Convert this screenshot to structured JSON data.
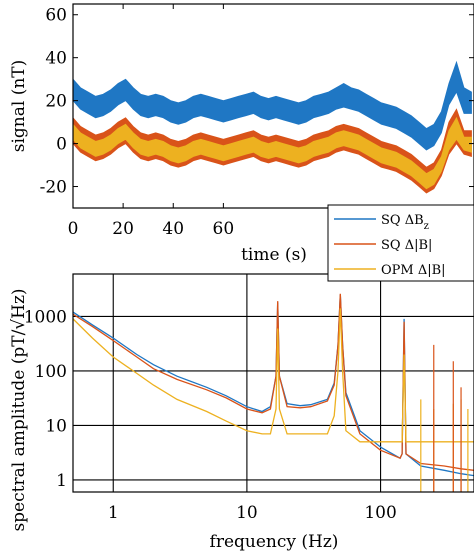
{
  "colors": {
    "sq_dbz": "#1f77c4",
    "sq_db": "#d95319",
    "opm_db": "#edb120"
  },
  "chart_data": [
    {
      "type": "area",
      "xlabel": "time (s)",
      "ylabel": "signal (nT)",
      "xlim": [
        0,
        160
      ],
      "ylim": [
        -30,
        65
      ],
      "xticks": [
        0,
        20,
        40,
        60
      ],
      "xtick_labels": [
        "0",
        "20",
        "40",
        "60"
      ],
      "yticks": [
        -20,
        0,
        20,
        40,
        60
      ],
      "ytick_labels": [
        "-20",
        "0",
        "20",
        "40",
        "60"
      ],
      "grid": false,
      "series": [
        {
          "name": "SQ ΔBz",
          "color": "sq_dbz",
          "x": [
            0,
            3,
            6,
            9,
            12,
            15,
            18,
            21,
            24,
            27,
            30,
            33,
            36,
            39,
            42,
            45,
            48,
            51,
            54,
            57,
            60,
            63,
            66,
            69,
            72,
            75,
            78,
            81,
            84,
            87,
            90,
            93,
            96,
            99,
            102,
            105,
            108,
            111,
            114,
            117,
            120,
            123,
            126,
            129,
            132,
            135,
            138,
            141,
            144,
            147,
            150,
            153,
            156,
            159
          ],
          "low": [
            20,
            16,
            14,
            12,
            13,
            15,
            18,
            20,
            16,
            13,
            12,
            13,
            12,
            10,
            9,
            10,
            12,
            13,
            12,
            11,
            10,
            11,
            12,
            13,
            14,
            12,
            11,
            12,
            11,
            10,
            9,
            10,
            12,
            13,
            14,
            16,
            17,
            16,
            15,
            13,
            11,
            9,
            8,
            7,
            5,
            3,
            0,
            -3,
            -1,
            5,
            18,
            24,
            14,
            14
          ],
          "high": [
            30,
            26,
            24,
            22,
            23,
            25,
            28,
            30,
            26,
            23,
            22,
            23,
            22,
            20,
            19,
            20,
            22,
            23,
            22,
            21,
            20,
            21,
            22,
            23,
            24,
            22,
            21,
            22,
            21,
            20,
            19,
            20,
            22,
            23,
            24,
            26,
            28,
            26,
            25,
            23,
            21,
            19,
            18,
            17,
            15,
            13,
            10,
            7,
            9,
            15,
            28,
            38,
            26,
            24
          ]
        },
        {
          "name": "SQ Δ|B|",
          "color": "sq_db",
          "x": [
            0,
            3,
            6,
            9,
            12,
            15,
            18,
            21,
            24,
            27,
            30,
            33,
            36,
            39,
            42,
            45,
            48,
            51,
            54,
            57,
            60,
            63,
            66,
            69,
            72,
            75,
            78,
            81,
            84,
            87,
            90,
            93,
            96,
            99,
            102,
            105,
            108,
            111,
            114,
            117,
            120,
            123,
            126,
            129,
            132,
            135,
            138,
            141,
            144,
            147,
            150,
            153,
            156,
            159
          ],
          "low": [
            0,
            -4,
            -6,
            -8,
            -7,
            -5,
            -2,
            0,
            -4,
            -7,
            -8,
            -7,
            -8,
            -10,
            -11,
            -10,
            -8,
            -7,
            -8,
            -9,
            -10,
            -9,
            -8,
            -7,
            -6,
            -8,
            -9,
            -8,
            -9,
            -10,
            -11,
            -10,
            -8,
            -7,
            -6,
            -4,
            -3,
            -4,
            -5,
            -7,
            -9,
            -11,
            -12,
            -13,
            -15,
            -17,
            -20,
            -23,
            -21,
            -15,
            -5,
            0,
            -5,
            -6
          ],
          "high": [
            12,
            8,
            6,
            4,
            5,
            7,
            10,
            12,
            8,
            5,
            4,
            5,
            4,
            2,
            1,
            2,
            4,
            5,
            4,
            3,
            2,
            3,
            4,
            5,
            6,
            4,
            3,
            4,
            3,
            2,
            1,
            2,
            4,
            5,
            6,
            8,
            9,
            8,
            7,
            5,
            3,
            1,
            0,
            -1,
            -3,
            -5,
            -8,
            -11,
            -9,
            -3,
            10,
            16,
            6,
            6
          ]
        },
        {
          "name": "OPM Δ|B|",
          "color": "opm_db",
          "x": [
            0,
            3,
            6,
            9,
            12,
            15,
            18,
            21,
            24,
            27,
            30,
            33,
            36,
            39,
            42,
            45,
            48,
            51,
            54,
            57,
            60,
            63,
            66,
            69,
            72,
            75,
            78,
            81,
            84,
            87,
            90,
            93,
            96,
            99,
            102,
            105,
            108,
            111,
            114,
            117,
            120,
            123,
            126,
            129,
            132,
            135,
            138,
            141,
            144,
            147,
            150,
            153,
            156,
            159
          ],
          "low": [
            2,
            -2,
            -4,
            -6,
            -5,
            -3,
            0,
            2,
            -2,
            -5,
            -6,
            -5,
            -6,
            -8,
            -9,
            -8,
            -6,
            -5,
            -6,
            -7,
            -8,
            -7,
            -6,
            -5,
            -4,
            -6,
            -7,
            -6,
            -7,
            -8,
            -9,
            -8,
            -6,
            -5,
            -4,
            -2,
            -1,
            -2,
            -3,
            -5,
            -7,
            -9,
            -10,
            -11,
            -13,
            -15,
            -18,
            -21,
            -19,
            -13,
            -3,
            2,
            -3,
            -4
          ],
          "high": [
            9,
            5,
            3,
            1,
            2,
            4,
            7,
            9,
            5,
            2,
            1,
            2,
            1,
            -1,
            -2,
            -1,
            1,
            2,
            1,
            0,
            -1,
            0,
            1,
            2,
            3,
            1,
            0,
            1,
            0,
            -1,
            -2,
            -1,
            1,
            2,
            3,
            5,
            6,
            5,
            4,
            2,
            0,
            -2,
            -3,
            -4,
            -6,
            -8,
            -11,
            -14,
            -12,
            -6,
            6,
            12,
            3,
            3
          ]
        }
      ]
    },
    {
      "type": "line",
      "xlabel": "frequency (Hz)",
      "ylabel": "spectral amplitude (pT/√Hz)",
      "xscale": "log",
      "yscale": "log",
      "xlim": [
        0.5,
        500
      ],
      "ylim": [
        0.6,
        6000
      ],
      "xticks": [
        1,
        10,
        100
      ],
      "xtick_labels": [
        "1",
        "10",
        "100"
      ],
      "yticks": [
        1,
        10,
        100,
        1000
      ],
      "ytick_labels": [
        "1",
        "10",
        "100",
        "1000"
      ],
      "grid": true,
      "series": [
        {
          "name": "SQ ΔBz",
          "color": "sq_dbz",
          "x": [
            0.5,
            0.7,
            1,
            1.5,
            2,
            3,
            5,
            7,
            10,
            13,
            15,
            16.5,
            17,
            17.5,
            20,
            25,
            30,
            40,
            45,
            48,
            50,
            52,
            55,
            70,
            100,
            140,
            145,
            150,
            155,
            200,
            300,
            400,
            500
          ],
          "y": [
            1200,
            700,
            400,
            200,
            130,
            80,
            50,
            35,
            22,
            18,
            22,
            80,
            1800,
            80,
            25,
            23,
            24,
            30,
            60,
            300,
            2500,
            300,
            40,
            8,
            4,
            2.5,
            3,
            900,
            3,
            1.8,
            1.5,
            1.3,
            1.2
          ]
        },
        {
          "name": "SQ Δ|B|",
          "color": "sq_db",
          "x": [
            0.5,
            0.7,
            1,
            1.5,
            2,
            3,
            5,
            7,
            10,
            13,
            15,
            16.5,
            17,
            17.5,
            20,
            25,
            30,
            40,
            45,
            48,
            50,
            52,
            55,
            70,
            100,
            140,
            145,
            150,
            155,
            200,
            300,
            400,
            500
          ],
          "y": [
            1100,
            650,
            360,
            180,
            110,
            70,
            45,
            32,
            20,
            17,
            20,
            80,
            1900,
            80,
            22,
            21,
            22,
            28,
            55,
            300,
            2600,
            300,
            35,
            7,
            3.5,
            2.5,
            3,
            800,
            3,
            2,
            1.8,
            1.6,
            1.5
          ]
        },
        {
          "name": "OPM Δ|B|",
          "color": "opm_db",
          "x": [
            0.5,
            0.7,
            1,
            1.5,
            2,
            3,
            5,
            7,
            10,
            13,
            15,
            16.5,
            17,
            17.5,
            20,
            25,
            30,
            40,
            45,
            48,
            50,
            52,
            55,
            70,
            100,
            140,
            145,
            150,
            155,
            200,
            300,
            400,
            500
          ],
          "y": [
            900,
            400,
            180,
            90,
            55,
            30,
            18,
            12,
            8,
            7,
            7,
            20,
            600,
            20,
            7,
            7,
            7,
            7,
            15,
            100,
            1400,
            100,
            8,
            5,
            5,
            5,
            5,
            200,
            5,
            5,
            5,
            5,
            5
          ]
        }
      ]
    }
  ],
  "spikes": [
    {
      "series": "opm_db",
      "x": 200,
      "y": 30
    },
    {
      "series": "opm_db",
      "x": 250,
      "y": 20
    },
    {
      "series": "opm_db",
      "x": 350,
      "y": 25
    },
    {
      "series": "opm_db",
      "x": 400,
      "y": 30
    },
    {
      "series": "opm_db",
      "x": 450,
      "y": 20
    },
    {
      "series": "sq_db",
      "x": 250,
      "y": 300
    },
    {
      "series": "sq_db",
      "x": 350,
      "y": 150
    },
    {
      "series": "sq_db",
      "x": 400,
      "y": 50
    }
  ],
  "legend": {
    "items": [
      {
        "label": "SQ ΔB",
        "subscript": "z",
        "color": "sq_dbz"
      },
      {
        "label": "SQ Δ|B|",
        "subscript": "",
        "color": "sq_db"
      },
      {
        "label": "OPM Δ|B|",
        "subscript": "",
        "color": "opm_db"
      }
    ]
  }
}
